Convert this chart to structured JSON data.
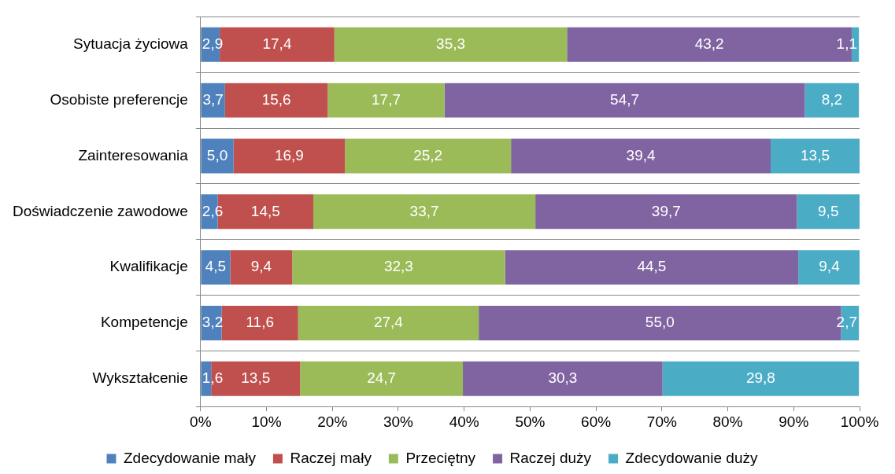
{
  "chart_data": {
    "type": "bar",
    "orientation": "horizontal",
    "stacked": true,
    "grid": "y",
    "legend": "bottom",
    "categories": [
      "Sytuacja życiowa",
      "Osobiste preferencje",
      "Zainteresowania",
      "Doświadczenie zawodowe",
      "Kwalifikacje",
      "Kompetencje",
      "Wykształcenie"
    ],
    "xlim": [
      0,
      100
    ],
    "xticks": [
      {
        "value": 0,
        "label": "0%"
      },
      {
        "value": 10,
        "label": "10%"
      },
      {
        "value": 20,
        "label": "20%"
      },
      {
        "value": 30,
        "label": "30%"
      },
      {
        "value": 40,
        "label": "40%"
      },
      {
        "value": 50,
        "label": "50%"
      },
      {
        "value": 60,
        "label": "60%"
      },
      {
        "value": 70,
        "label": "70%"
      },
      {
        "value": 80,
        "label": "80%"
      },
      {
        "value": 90,
        "label": "90%"
      },
      {
        "value": 100,
        "label": "100%"
      }
    ],
    "series": [
      {
        "name": "Zdecydowanie mały",
        "color": "#4f81bd",
        "values": [
          2.9,
          3.7,
          5.0,
          2.6,
          4.5,
          3.2,
          1.6
        ],
        "value_labels": [
          "2,9",
          "3,7",
          "5,0",
          "2,6",
          "4,5",
          "3,2",
          "1,6"
        ]
      },
      {
        "name": "Raczej mały",
        "color": "#c0504d",
        "values": [
          17.4,
          15.6,
          16.9,
          14.5,
          9.4,
          11.6,
          13.5
        ],
        "value_labels": [
          "17,4",
          "15,6",
          "16,9",
          "14,5",
          "9,4",
          "11,6",
          "13,5"
        ]
      },
      {
        "name": "Przeciętny",
        "color": "#9bbb59",
        "values": [
          35.3,
          17.7,
          25.2,
          33.7,
          32.3,
          27.4,
          24.7
        ],
        "value_labels": [
          "35,3",
          "17,7",
          "25,2",
          "33,7",
          "32,3",
          "27,4",
          "24,7"
        ]
      },
      {
        "name": "Raczej duży",
        "color": "#8064a2",
        "values": [
          43.2,
          54.7,
          39.4,
          39.7,
          44.5,
          55.0,
          30.3
        ],
        "value_labels": [
          "43,2",
          "54,7",
          "39,4",
          "39,7",
          "44,5",
          "55,0",
          "30,3"
        ]
      },
      {
        "name": "Zdecydowanie duży",
        "color": "#4bacc6",
        "values": [
          1.1,
          8.2,
          13.5,
          9.5,
          9.4,
          2.7,
          29.8
        ],
        "value_labels": [
          "1,1",
          "8,2",
          "13,5",
          "9,5",
          "9,4",
          "2,7",
          "29,8"
        ]
      }
    ]
  }
}
